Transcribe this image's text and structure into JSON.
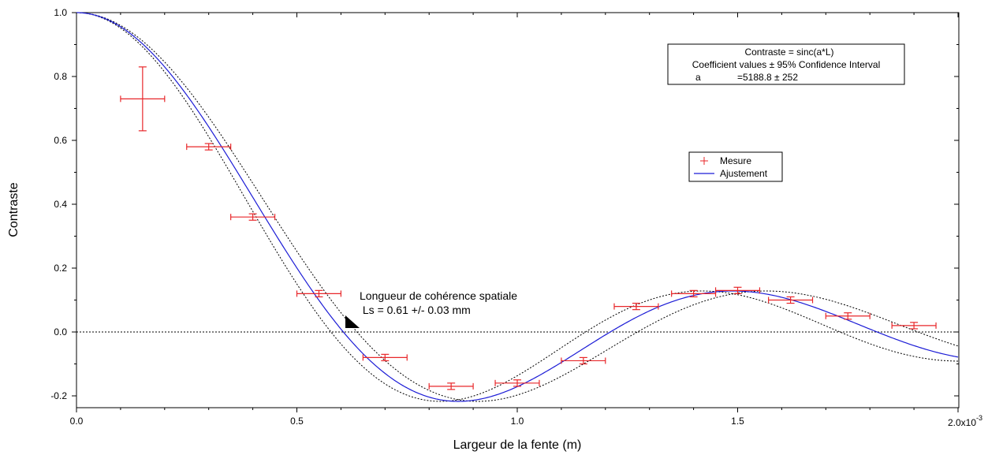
{
  "chart_data": {
    "type": "scatter",
    "xlabel": "Largeur de la fente (m)",
    "ylabel": "Contraste",
    "x_scale_label": "2.0x10",
    "x_scale_exponent": "-3",
    "x_ticks": [
      "0.0",
      "0.5",
      "1.0",
      "1.5"
    ],
    "y_ticks": [
      "-0.2",
      "0.0",
      "0.2",
      "0.4",
      "0.6",
      "0.8",
      "1.0"
    ],
    "x_tick_values": [
      0.0,
      0.5,
      1.0,
      1.5,
      2.0
    ],
    "y_tick_values": [
      -0.2,
      0.0,
      0.2,
      0.4,
      0.6,
      0.8,
      1.0
    ],
    "xlim": [
      0.0,
      2.0
    ],
    "ylim": [
      -0.24,
      1.01
    ],
    "x_unit_multiplier": 0.001,
    "grid": false,
    "legend_placement": "right-center",
    "series": [
      {
        "name": "Mesure",
        "kind": "points_with_errorbars",
        "color": "#e8272a",
        "points": [
          {
            "x": 0.15,
            "y": 0.73,
            "xerr": 0.05,
            "yerr": 0.1
          },
          {
            "x": 0.3,
            "y": 0.58,
            "xerr": 0.05,
            "yerr": 0.01
          },
          {
            "x": 0.4,
            "y": 0.36,
            "xerr": 0.05,
            "yerr": 0.01
          },
          {
            "x": 0.55,
            "y": 0.12,
            "xerr": 0.05,
            "yerr": 0.01
          },
          {
            "x": 0.7,
            "y": -0.08,
            "xerr": 0.05,
            "yerr": 0.01
          },
          {
            "x": 0.85,
            "y": -0.17,
            "xerr": 0.05,
            "yerr": 0.01
          },
          {
            "x": 1.0,
            "y": -0.16,
            "xerr": 0.05,
            "yerr": 0.01
          },
          {
            "x": 1.15,
            "y": -0.09,
            "xerr": 0.05,
            "yerr": 0.01
          },
          {
            "x": 1.27,
            "y": 0.08,
            "xerr": 0.05,
            "yerr": 0.01
          },
          {
            "x": 1.4,
            "y": 0.12,
            "xerr": 0.05,
            "yerr": 0.01
          },
          {
            "x": 1.5,
            "y": 0.13,
            "xerr": 0.05,
            "yerr": 0.01
          },
          {
            "x": 1.62,
            "y": 0.1,
            "xerr": 0.05,
            "yerr": 0.01
          },
          {
            "x": 1.75,
            "y": 0.05,
            "xerr": 0.05,
            "yerr": 0.01
          },
          {
            "x": 1.9,
            "y": 0.02,
            "xerr": 0.05,
            "yerr": 0.01
          }
        ]
      },
      {
        "name": "Ajustement",
        "kind": "fit_curve",
        "color": "#1c1cd6",
        "model": "sinc(a*L)",
        "a": 5188.8
      },
      {
        "name": "",
        "kind": "confidence_band",
        "color": "#000000",
        "a_values": [
          4936.8,
          5440.8
        ]
      }
    ],
    "zero_line": 0.0,
    "fit_box": {
      "line1": "Contraste = sinc(a*L)",
      "line2": "Coefficient values ± 95% Confidence Interval",
      "line3_name": "a",
      "line3_value": "=5188.8 ± 252"
    },
    "annotation": {
      "line1": "Longueur de cohérence spatiale",
      "line2": " Ls = 0.61 +/- 0.03 mm",
      "x": 0.61,
      "y": 0.0
    },
    "legend": {
      "items": [
        {
          "label": "Mesure",
          "marker": "+",
          "color": "#e8272a"
        },
        {
          "label": "Ajustement",
          "marker": "line",
          "color": "#1c1cd6"
        }
      ]
    }
  }
}
